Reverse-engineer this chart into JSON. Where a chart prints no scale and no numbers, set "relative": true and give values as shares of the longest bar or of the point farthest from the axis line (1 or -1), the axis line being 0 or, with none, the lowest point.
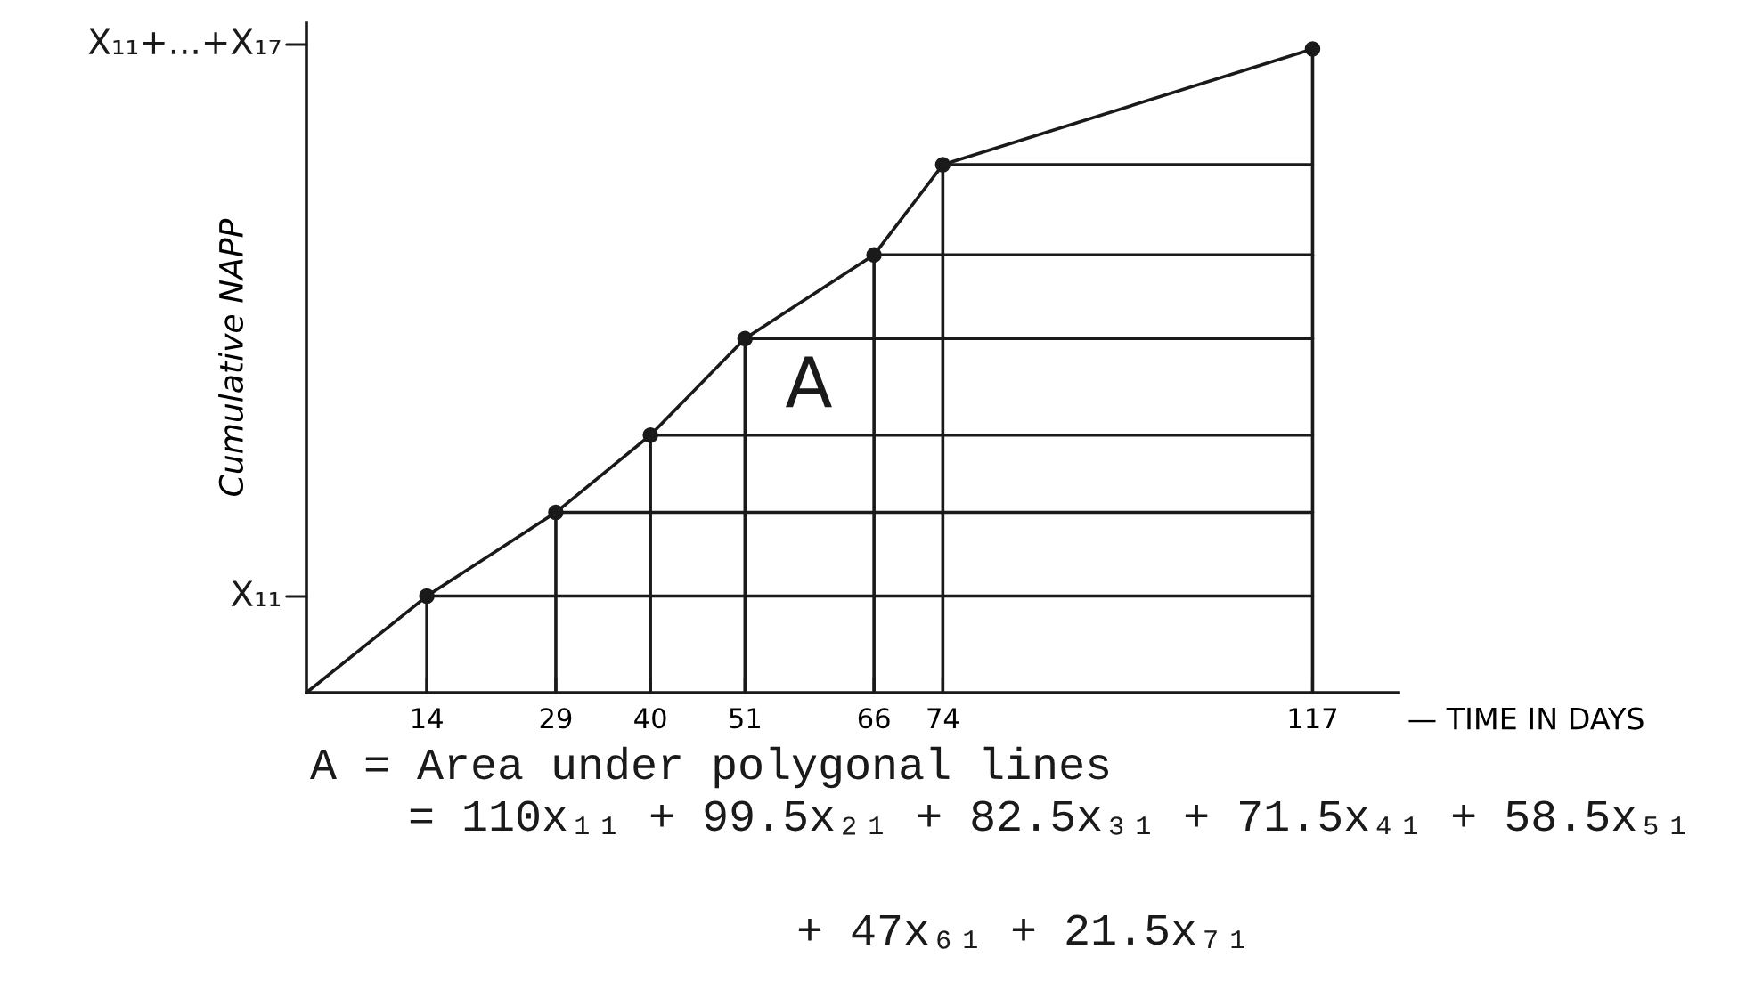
{
  "chart_data": {
    "type": "line",
    "relative": true,
    "ylabel": "Cumulative NAPP",
    "xlabel": "— TIME IN DAYS",
    "xlim": [
      0,
      127
    ],
    "xticks": [
      14,
      29,
      40,
      51,
      66,
      74,
      117
    ],
    "marker": "circle",
    "annotations": [
      "A",
      "A = Area under polygonal lines",
      "= 110x₁₁ + 99.5x₂₁ + 82.5x₃₁ + 71.5x₄₁ + 58.5x₅₁",
      "+ 47x₆₁ + 21.5x₇₁",
      "X₁₁",
      "X₁₁+...+X₁₇"
    ],
    "series": [
      {
        "color": "#1a1a1a",
        "marker": "none",
        "x": [
          0,
          14,
          29,
          40,
          51,
          66,
          74,
          117
        ],
        "values": [
          0,
          0.15,
          0.28,
          0.4,
          0.55,
          0.68,
          0.82,
          1
        ]
      },
      {
        "type": "scatter",
        "color": "#1a1a1a",
        "x": [
          14,
          29,
          40,
          51,
          66,
          74,
          117
        ],
        "values": [
          0.15,
          0.28,
          0.4,
          0.55,
          0.68,
          0.82,
          1
        ]
      },
      {
        "color": "#1a1a1a",
        "marker": "none",
        "x": [
          14,
          117
        ],
        "values": [
          0.15,
          0.15
        ]
      },
      {
        "color": "#1a1a1a",
        "marker": "none",
        "x": [
          29,
          117
        ],
        "values": [
          0.28,
          0.28
        ]
      },
      {
        "color": "#1a1a1a",
        "marker": "none",
        "x": [
          40,
          117
        ],
        "values": [
          0.4,
          0.4
        ]
      },
      {
        "color": "#1a1a1a",
        "marker": "none",
        "x": [
          51,
          117
        ],
        "values": [
          0.55,
          0.55
        ]
      },
      {
        "color": "#1a1a1a",
        "marker": "none",
        "x": [
          66,
          117
        ],
        "values": [
          0.68,
          0.68
        ]
      },
      {
        "color": "#1a1a1a",
        "marker": "none",
        "x": [
          74,
          117
        ],
        "values": [
          0.82,
          0.82
        ]
      },
      {
        "color": "#1a1a1a",
        "marker": "none",
        "x": [
          14,
          14
        ],
        "values": [
          0,
          0.15
        ]
      },
      {
        "color": "#1a1a1a",
        "marker": "none",
        "x": [
          29,
          29
        ],
        "values": [
          0,
          0.28
        ]
      },
      {
        "color": "#1a1a1a",
        "marker": "none",
        "x": [
          40,
          40
        ],
        "values": [
          0,
          0.4
        ]
      },
      {
        "color": "#1a1a1a",
        "marker": "none",
        "x": [
          51,
          51
        ],
        "values": [
          0,
          0.55
        ]
      },
      {
        "color": "#1a1a1a",
        "marker": "none",
        "x": [
          66,
          66
        ],
        "values": [
          0,
          0.68
        ]
      },
      {
        "color": "#1a1a1a",
        "marker": "none",
        "x": [
          74,
          74
        ],
        "values": [
          0,
          0.82
        ]
      },
      {
        "color": "#1a1a1a",
        "marker": "none",
        "x": [
          117,
          117
        ],
        "values": [
          0,
          1
        ]
      }
    ]
  }
}
